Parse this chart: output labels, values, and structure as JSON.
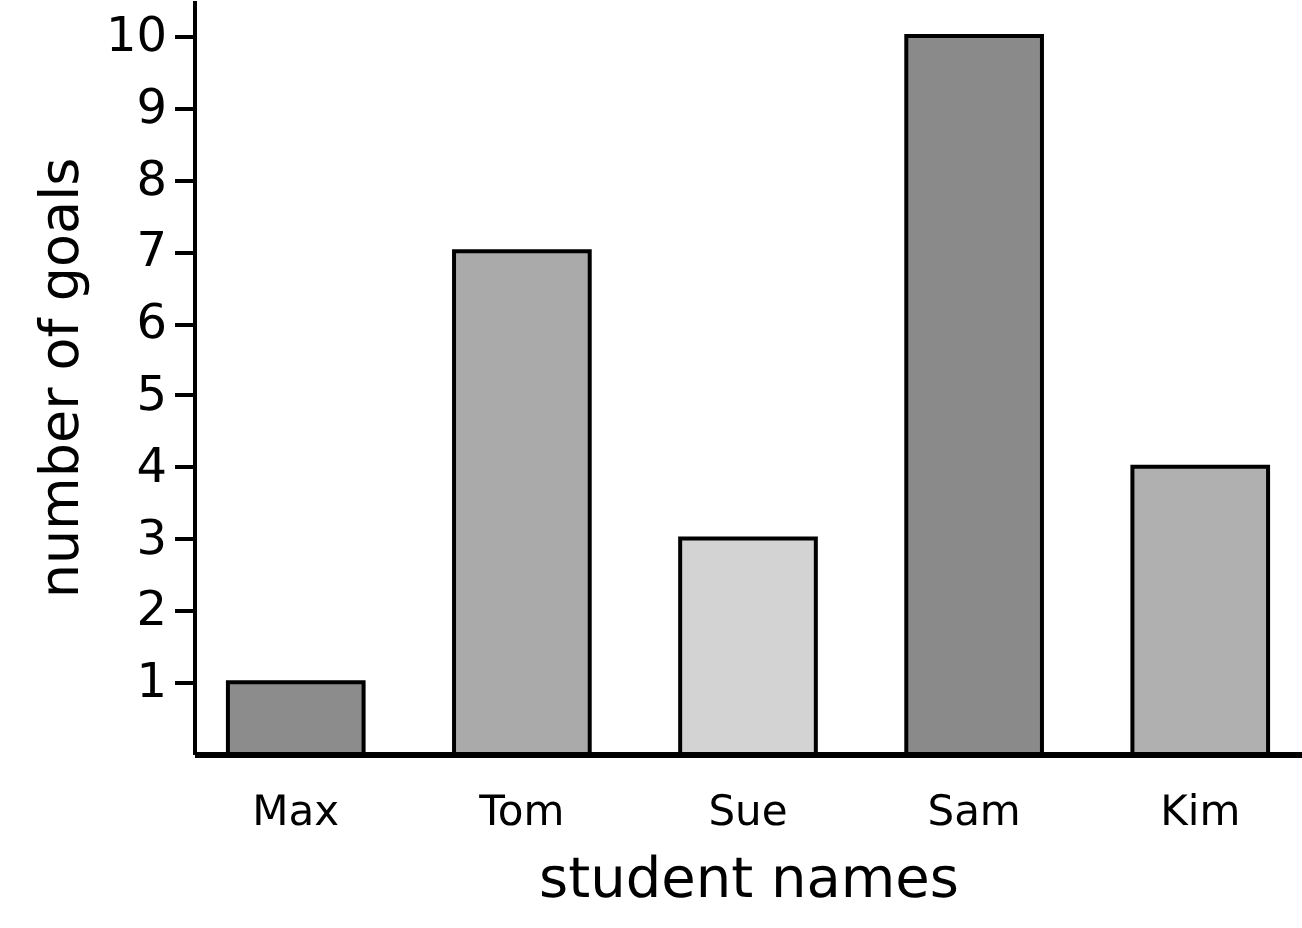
{
  "chart_data": {
    "type": "bar",
    "xlabel": "student names",
    "ylabel": "number of goals",
    "categories": [
      "Max",
      "Tom",
      "Sue",
      "Sam",
      "Kim"
    ],
    "values": [
      1,
      7,
      3,
      10,
      4
    ],
    "colors": [
      "#8c8c8c",
      "#aaaaaa",
      "#d3d3d3",
      "#8a8a8a",
      "#b0b0b0"
    ],
    "ylim": [
      0,
      10.5
    ],
    "yticks": [
      1,
      2,
      3,
      4,
      5,
      6,
      7,
      8,
      9,
      10
    ],
    "grid": false
  }
}
